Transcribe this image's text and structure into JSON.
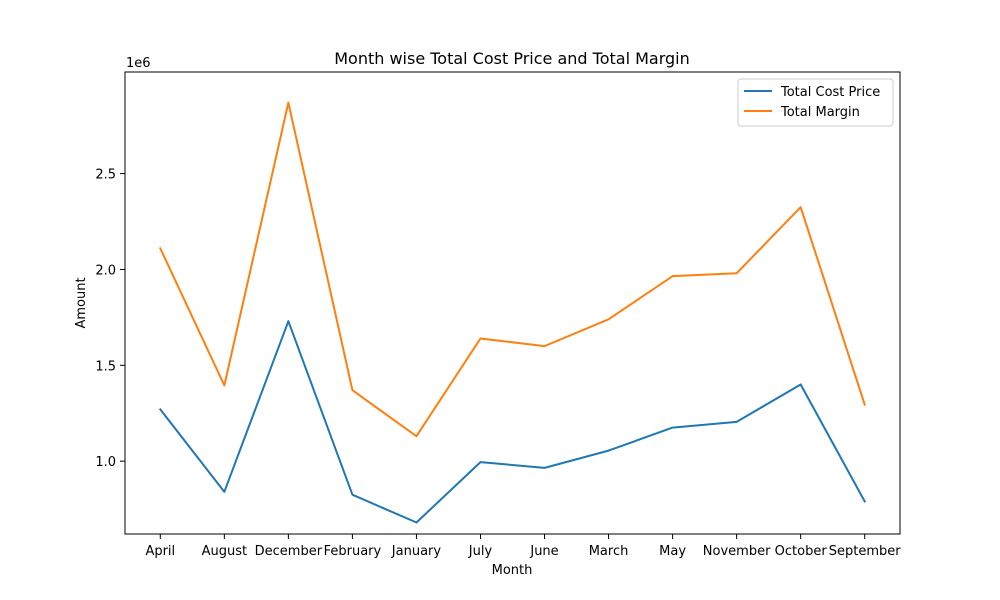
{
  "chart_data": {
    "type": "line",
    "title": "Month wise Total Cost Price and Total Margin",
    "xlabel": "Month",
    "ylabel": "Amount",
    "y_offset_label": "1e6",
    "categories": [
      "April",
      "August",
      "December",
      "February",
      "January",
      "July",
      "June",
      "March",
      "May",
      "November",
      "October",
      "September"
    ],
    "ylim": [
      0.62,
      3.03
    ],
    "y_ticks": [
      1.0,
      1.5,
      2.0,
      2.5
    ],
    "y_tick_labels": [
      "1.0",
      "1.5",
      "2.0",
      "2.5"
    ],
    "grid": false,
    "legend_position": "top-right",
    "series": [
      {
        "name": "Total Cost Price",
        "color": "#1f77b4",
        "values": [
          1.27,
          0.84,
          1.73,
          0.825,
          0.68,
          0.995,
          0.965,
          1.055,
          1.175,
          1.205,
          1.4,
          0.79
        ]
      },
      {
        "name": "Total Margin",
        "color": "#ff7f0e",
        "values": [
          2.11,
          1.395,
          2.87,
          1.37,
          1.13,
          1.64,
          1.6,
          1.74,
          1.965,
          1.98,
          2.325,
          1.295
        ]
      }
    ]
  }
}
